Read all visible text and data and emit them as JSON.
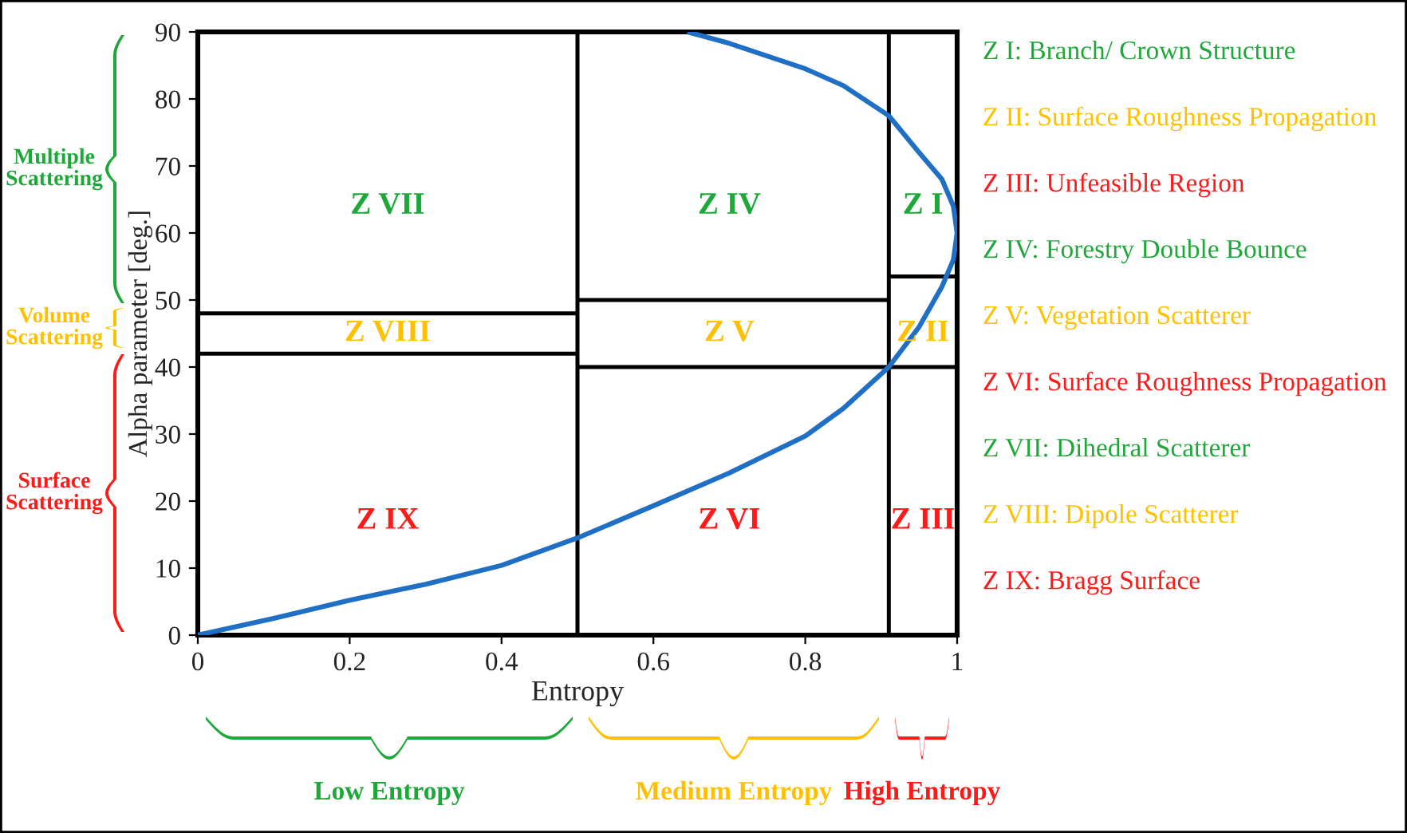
{
  "chart_data": {
    "type": "line",
    "xlabel": "Entropy",
    "ylabel": "Alpha parameter [deg.]",
    "xlim": [
      0,
      1
    ],
    "ylim": [
      0,
      90
    ],
    "xticks": [
      0,
      0.2,
      0.4,
      0.6,
      0.8,
      1
    ],
    "yticks": [
      0,
      10,
      20,
      30,
      40,
      50,
      60,
      70,
      80,
      90
    ],
    "grid": false,
    "legend": false,
    "marker": "none",
    "line_style": "solid",
    "series": [
      {
        "color": "#1f6fc5",
        "x": [
          0,
          0.1,
          0.2,
          0.3,
          0.4,
          0.5,
          0.6,
          0.7,
          0.8,
          0.85,
          0.91,
          0.95,
          0.98,
          0.995,
          1,
          0.995,
          0.98,
          0.95,
          0.91,
          0.85,
          0.8,
          0.7,
          0.645
        ],
        "values": [
          0,
          2.5,
          5.2,
          7.6,
          10.4,
          14.5,
          19.3,
          24.2,
          29.7,
          33.8,
          40,
          46,
          52,
          56,
          60,
          64,
          68,
          72,
          77.5,
          82,
          84.5,
          88.3,
          90
        ]
      },
      {
        "color": "#000000",
        "x": [
          0.5,
          0.5
        ],
        "values": [
          0,
          90
        ]
      },
      {
        "color": "#000000",
        "x": [
          0.91,
          0.91
        ],
        "values": [
          0,
          90
        ]
      },
      {
        "color": "#000000",
        "x": [
          0,
          0.5
        ],
        "values": [
          48,
          48
        ]
      },
      {
        "color": "#000000",
        "x": [
          0,
          0.5
        ],
        "values": [
          42,
          42
        ]
      },
      {
        "color": "#000000",
        "x": [
          0.5,
          0.91
        ],
        "values": [
          50,
          50
        ]
      },
      {
        "color": "#000000",
        "x": [
          0.5,
          1
        ],
        "values": [
          40,
          40
        ]
      },
      {
        "color": "#000000",
        "x": [
          0.91,
          1
        ],
        "values": [
          53.5,
          53.5
        ]
      }
    ],
    "annotations": [
      "Z VII",
      "Z IV",
      "Z I",
      "Z VIII",
      "Z V",
      "Z II",
      "Z IX",
      "Z VI",
      "Z III",
      "Z I: Branch/ Crown Structure",
      "Z II: Surface Roughness Propagation",
      "Z III: Unfeasible Region",
      "Z IV: Forestry Double Bounce",
      "Z V: Vegetation Scatterer",
      "Z VI: Surface Roughness Propagation",
      "Z VII: Dihedral Scatterer",
      "Z VIII: Dipole Scatterer",
      "Z IX: Bragg Surface",
      "Multiple\nScattering",
      "Volume\nScattering",
      "Surface\nScattering",
      "Low Entropy",
      "Medium Entropy",
      "High Entropy"
    ]
  }
}
